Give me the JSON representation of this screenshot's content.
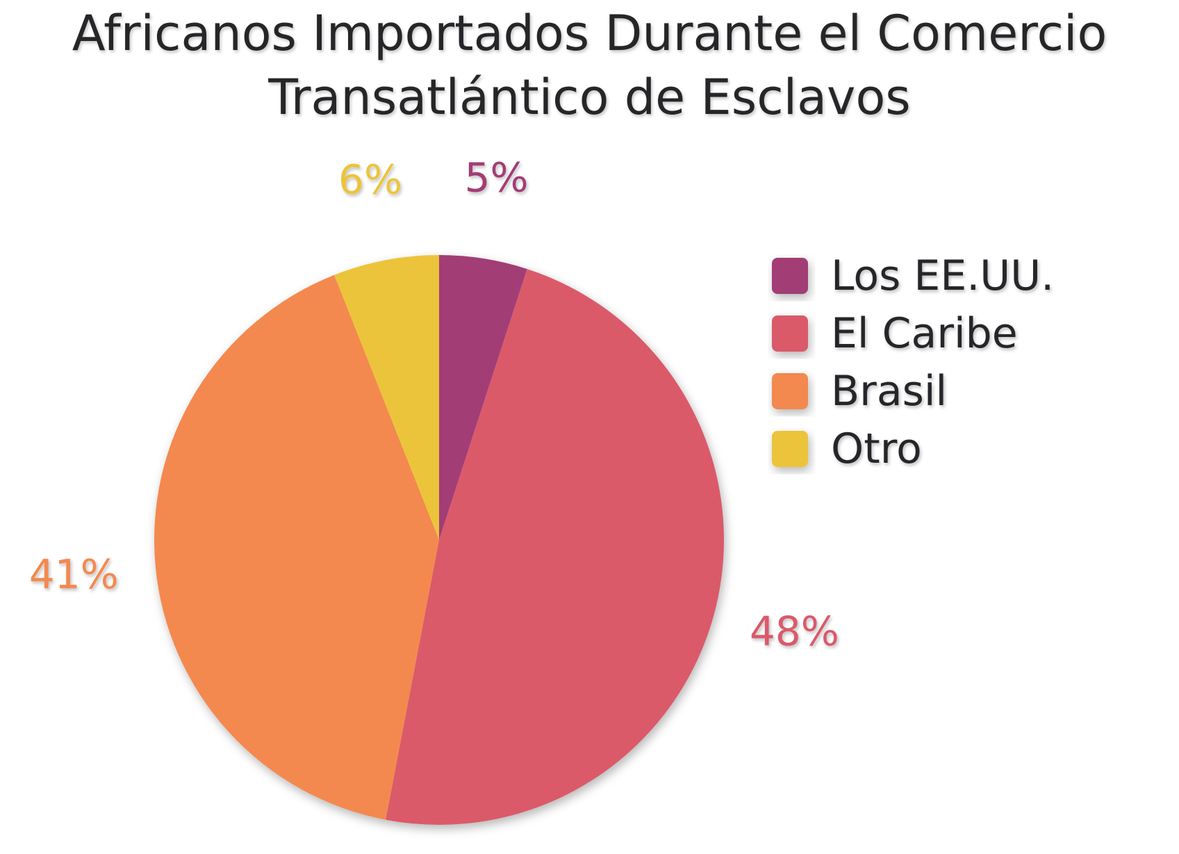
{
  "chart_data": {
    "type": "pie",
    "title_lines": [
      "Africanos Importados Durante el Comercio",
      "Transatlántico de Esclavos"
    ],
    "categories": [
      "Los EE.UU.",
      "El Caribe",
      "Brasil",
      "Otro"
    ],
    "values": [
      5,
      48,
      41,
      6
    ],
    "data_labels": [
      "5%",
      "48%",
      "41%",
      "6%"
    ],
    "colors": [
      "#a23e76",
      "#da5a6b",
      "#f3894f",
      "#ecc43a"
    ],
    "start_angle": "12 o'clock",
    "direction": "clockwise",
    "legend_position": "right"
  }
}
